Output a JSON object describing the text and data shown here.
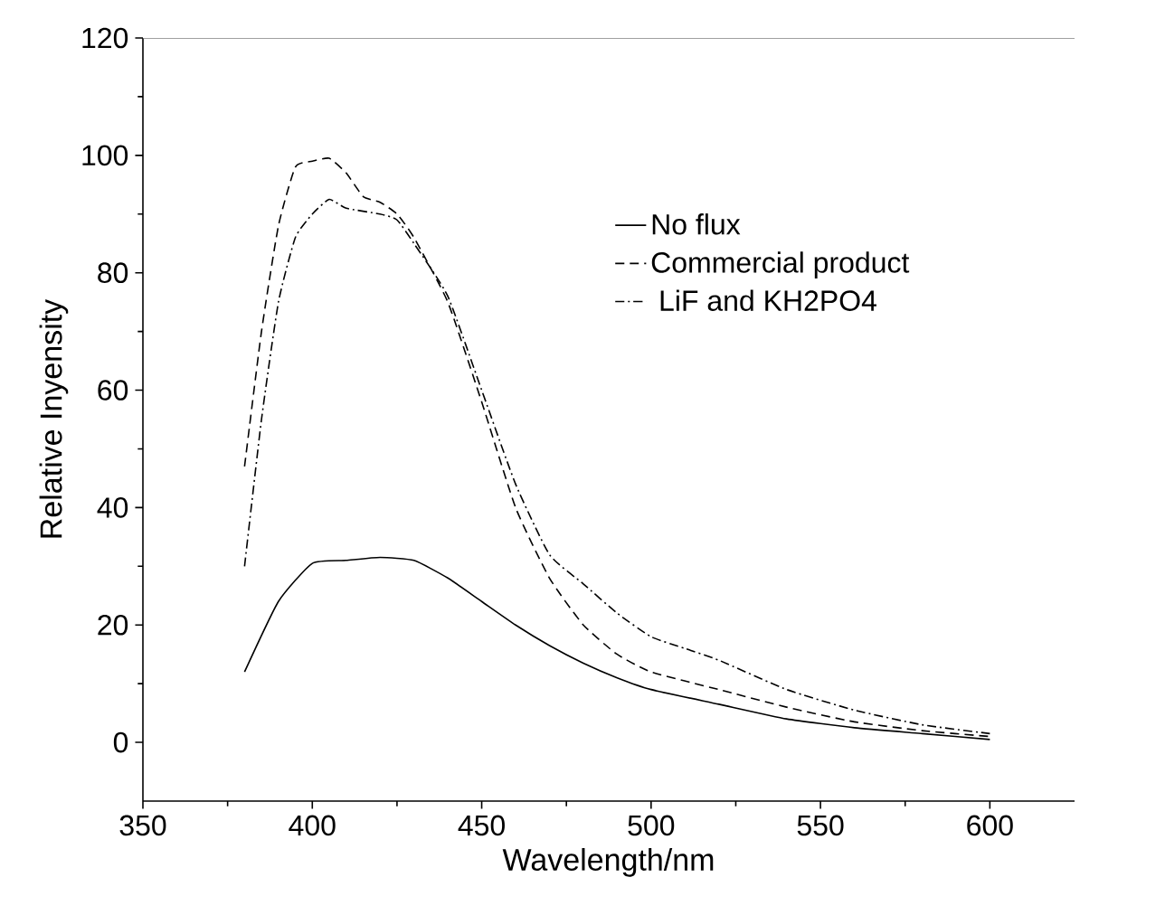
{
  "chart_data": {
    "type": "line",
    "xlabel": "Wavelength/nm",
    "ylabel": "Relative Inyensity",
    "xlim": [
      350,
      625
    ],
    "ylim": [
      -10,
      120
    ],
    "xticks": [
      350,
      400,
      450,
      500,
      550,
      600
    ],
    "yticks": [
      0,
      20,
      40,
      60,
      80,
      100,
      120
    ],
    "legend": "top right",
    "grid": false,
    "series": [
      {
        "name": "No flux",
        "color": "#000000",
        "line_style": "solid",
        "x": [
          380,
          390,
          400,
          410,
          420,
          430,
          440,
          450,
          460,
          470,
          480,
          490,
          500,
          520,
          540,
          560,
          580,
          600
        ],
        "values": [
          12,
          24,
          30.5,
          31,
          31.5,
          31,
          28,
          24,
          20,
          16.5,
          13.5,
          11,
          9,
          6.5,
          4,
          2.5,
          1.5,
          0.5
        ]
      },
      {
        "name": "Commercial product",
        "color": "#000000",
        "line_style": "dashed",
        "x": [
          380,
          385,
          390,
          395,
          400,
          405,
          410,
          415,
          420,
          425,
          430,
          440,
          450,
          460,
          470,
          480,
          490,
          500,
          520,
          540,
          560,
          580,
          600
        ],
        "values": [
          47,
          70,
          88,
          98,
          99,
          99.5,
          97,
          93,
          92,
          90,
          86,
          75,
          58,
          40,
          28,
          20,
          15,
          12,
          9,
          6,
          3.5,
          2,
          1
        ]
      },
      {
        "name": " LiF and KH2PO4",
        "color": "#000000",
        "line_style": "dashdot",
        "x": [
          380,
          385,
          390,
          395,
          400,
          405,
          410,
          420,
          425,
          430,
          440,
          450,
          460,
          470,
          480,
          490,
          500,
          510,
          520,
          540,
          560,
          580,
          600
        ],
        "values": [
          30,
          55,
          75,
          86,
          90,
          92.5,
          91,
          90,
          89,
          85,
          76,
          60,
          44,
          32,
          27,
          22,
          18,
          16,
          14,
          9,
          5.5,
          3,
          1.5
        ]
      }
    ]
  }
}
